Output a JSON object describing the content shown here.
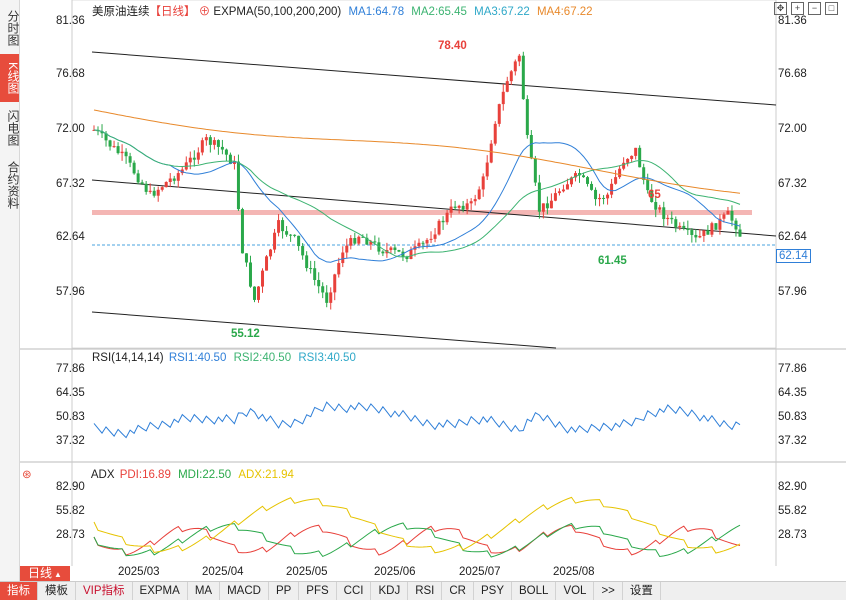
{
  "sidebar": {
    "tabs": [
      {
        "label": "分时图",
        "active": false
      },
      {
        "label": "K线图",
        "active": true
      },
      {
        "label": "闪电图",
        "active": false
      },
      {
        "label": "合约资料",
        "active": false
      }
    ]
  },
  "main_chart": {
    "instrument": "美原油连续",
    "period_tag": "【日线】",
    "indicator": "EXPMA(50,100,200,200)",
    "ma1": "MA1:64.78",
    "ma2": "MA2:65.45",
    "ma3": "MA3:67.22",
    "ma4": "MA4:67.22",
    "y_ticks": [
      "81.36",
      "76.68",
      "72.00",
      "67.32",
      "62.64",
      "57.96"
    ],
    "current_price": "62.14",
    "annotations": {
      "high": "78.40",
      "low1": "55.12",
      "low2": "61.45",
      "level": "65"
    },
    "colors": {
      "up": "#e8413b",
      "down": "#2aa84a",
      "ma1": "#2f7fd8",
      "ma2": "#3cb371",
      "ma3": "#e8892b",
      "band": "#f4b6b4"
    }
  },
  "rsi_panel": {
    "title": "RSI(14,14,14)",
    "rsi1": "RSI1:40.50",
    "rsi2": "RSI2:40.50",
    "rsi3": "RSI3:40.50",
    "y_ticks": [
      "77.86",
      "64.35",
      "50.83",
      "37.32"
    ]
  },
  "adx_panel": {
    "title": "ADX",
    "pdi": "PDI:16.89",
    "mdi": "MDI:22.50",
    "adx": "ADX:21.94",
    "y_ticks": [
      "82.90",
      "55.82",
      "28.73"
    ]
  },
  "date_axis": {
    "period_button": "日线",
    "labels": [
      "2025/03",
      "2025/04",
      "2025/05",
      "2025/06",
      "2025/07",
      "2025/08"
    ]
  },
  "bottom_bar": {
    "items": [
      "指标",
      "模板",
      "VIP指标",
      "EXPMA",
      "MA",
      "MACD",
      "PP",
      "PFS",
      "CCI",
      "KDJ",
      "RSI",
      "CR",
      "PSY",
      "BOLL",
      "VOL",
      ">>",
      "设置"
    ]
  },
  "chart_data": {
    "type": "candlestick",
    "title": "美原油连续【日线】",
    "ylim": [
      55.12,
      78.4
    ],
    "annotated_points": [
      {
        "label": "78.40",
        "value": 78.4
      },
      {
        "label": "55.12",
        "value": 55.12
      },
      {
        "label": "61.45",
        "value": 61.45
      },
      {
        "label": "65",
        "value": 65
      }
    ],
    "rsi_series": [
      {
        "name": "RSI1",
        "last": 40.5
      },
      {
        "name": "RSI2",
        "last": 40.5
      },
      {
        "name": "RSI3",
        "last": 40.5
      }
    ],
    "adx_series": [
      {
        "name": "PDI",
        "last": 16.89
      },
      {
        "name": "MDI",
        "last": 22.5
      },
      {
        "name": "ADX",
        "last": 21.94
      }
    ]
  }
}
